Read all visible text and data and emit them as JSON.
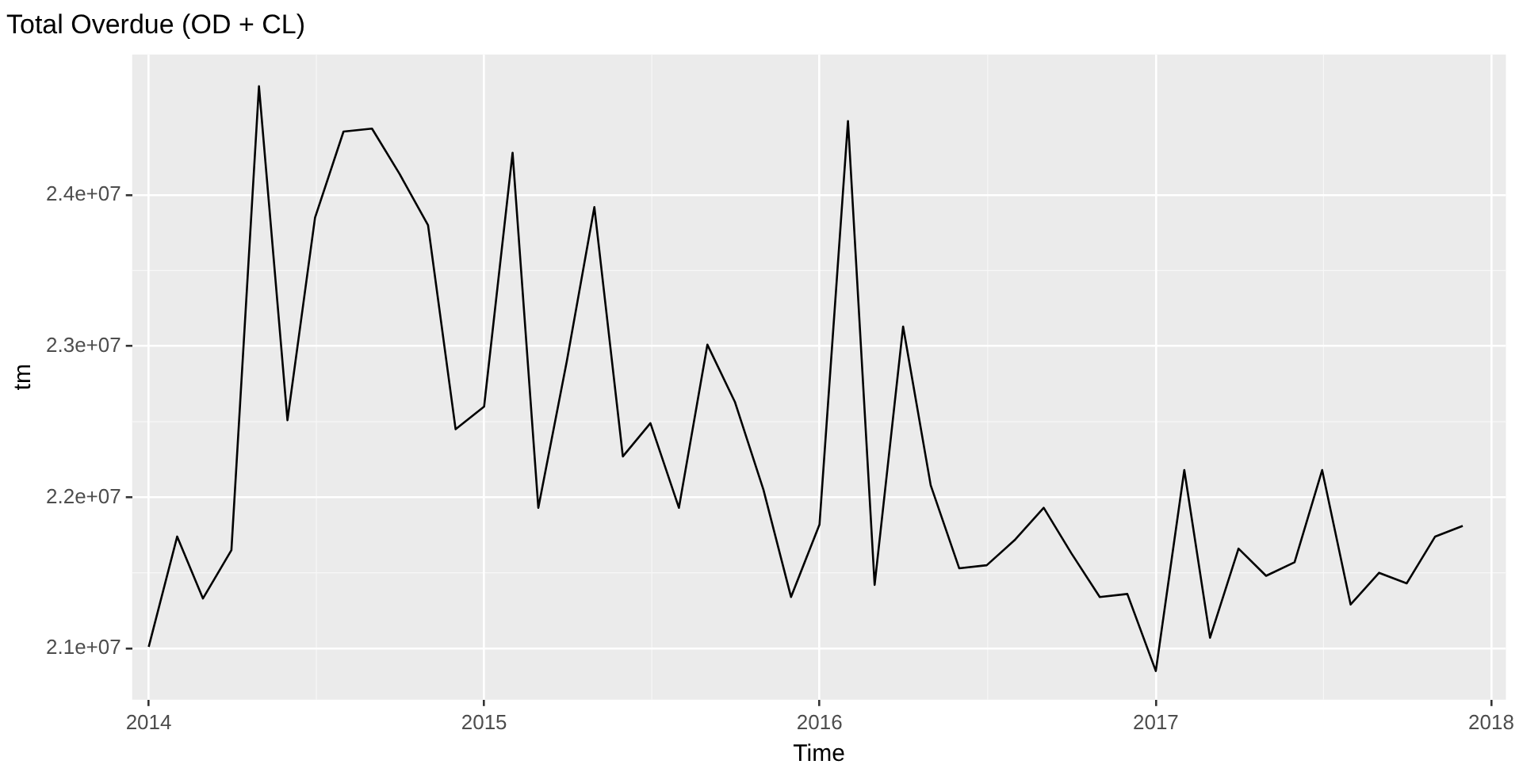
{
  "chart_data": {
    "type": "line",
    "title": "Total Overdue (OD + CL)",
    "xlabel": "Time",
    "ylabel": "tm",
    "x": [
      "2014-01",
      "2014-02",
      "2014-03",
      "2014-04",
      "2014-05",
      "2014-06",
      "2014-07",
      "2014-08",
      "2014-09",
      "2014-10",
      "2014-11",
      "2014-12",
      "2015-01",
      "2015-02",
      "2015-03",
      "2015-04",
      "2015-05",
      "2015-06",
      "2015-07",
      "2015-08",
      "2015-09",
      "2015-10",
      "2015-11",
      "2015-12",
      "2016-01",
      "2016-02",
      "2016-03",
      "2016-04",
      "2016-05",
      "2016-06",
      "2016-07",
      "2016-08",
      "2016-09",
      "2016-10",
      "2016-11",
      "2016-12",
      "2017-01",
      "2017-02",
      "2017-03",
      "2017-04",
      "2017-05",
      "2017-06",
      "2017-07",
      "2017-08",
      "2017-09",
      "2017-10",
      "2017-11",
      "2017-12"
    ],
    "series": [
      {
        "color": "#000000",
        "values": [
          21010000,
          21740000,
          21330000,
          21650000,
          24720000,
          22510000,
          23850000,
          24420000,
          24440000,
          24140000,
          23800000,
          22450000,
          22600000,
          24280000,
          21930000,
          22900000,
          23920000,
          22270000,
          22490000,
          21930000,
          23010000,
          22630000,
          22050000,
          21340000,
          21820000,
          24490000,
          21420000,
          23130000,
          22080000,
          21530000,
          21550000,
          21720000,
          21930000,
          21630000,
          21340000,
          21360000,
          20850000,
          22180000,
          21070000,
          21660000,
          21480000,
          21570000,
          22180000,
          21290000,
          21500000,
          21430000,
          21740000,
          21810000
        ]
      }
    ],
    "xlim": [
      "2013-12-14",
      "2018-01-17"
    ],
    "xticks": [
      "2014",
      "2015",
      "2016",
      "2017",
      "2018"
    ],
    "ylim": [
      20660000,
      24930000
    ],
    "yticks": [
      {
        "value": 21000000,
        "label": "2.1e+07"
      },
      {
        "value": 22000000,
        "label": "2.2e+07"
      },
      {
        "value": 23000000,
        "label": "2.3e+07"
      },
      {
        "value": 24000000,
        "label": "2.4e+07"
      }
    ],
    "grid": true,
    "marker": "none",
    "line_style": "solid",
    "legend": false
  }
}
